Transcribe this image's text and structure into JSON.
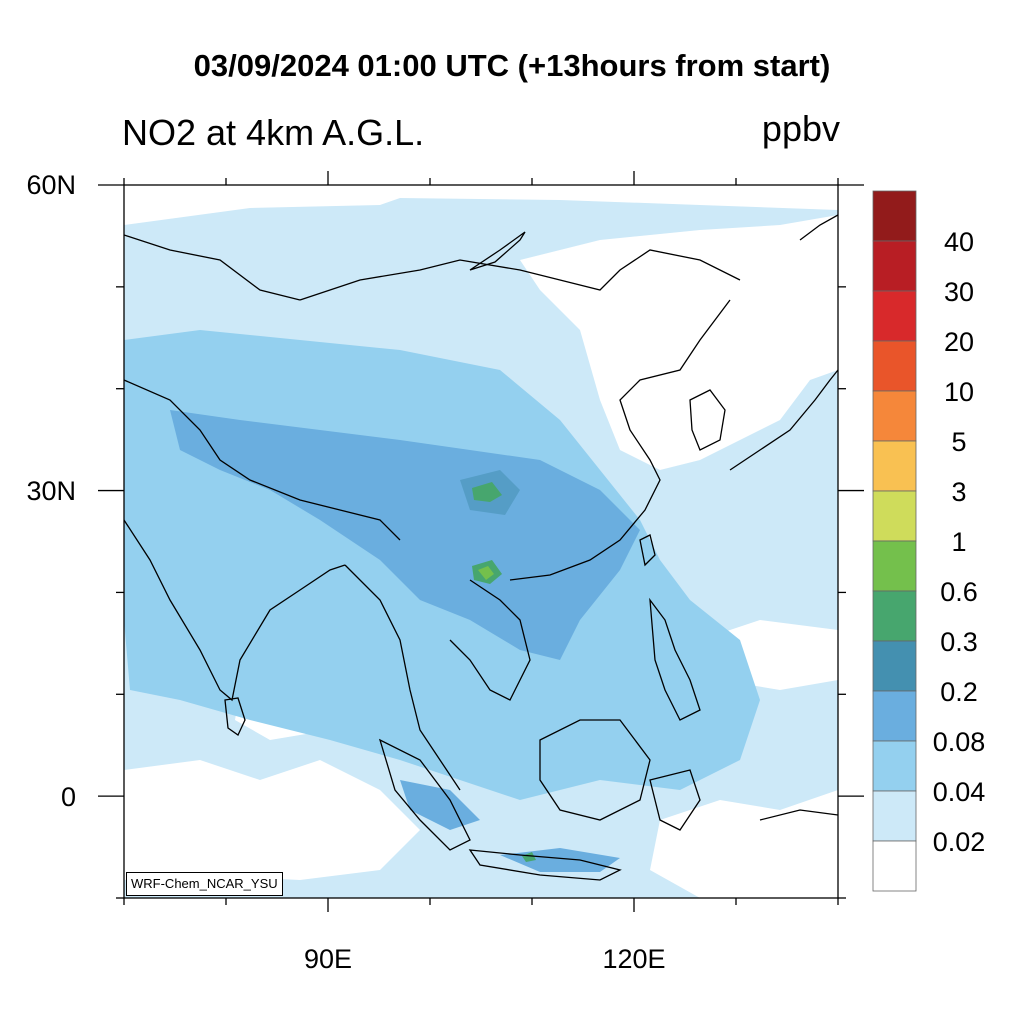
{
  "header": {
    "title": "03/09/2024 01:00 UTC (+13hours from start)",
    "subtitle": "NO2 at 4km A.G.L.",
    "units": "ppbv"
  },
  "axes": {
    "lat_labels": [
      "60N",
      "30N",
      "0"
    ],
    "lon_labels": [
      "90E",
      "120E"
    ],
    "lat_range": [
      -10,
      60
    ],
    "lon_range": [
      70,
      140
    ]
  },
  "colorbar": {
    "labels": [
      "40",
      "30",
      "20",
      "10",
      "5",
      "3",
      "1",
      "0.6",
      "0.3",
      "0.2",
      "0.08",
      "0.04",
      "0.02"
    ],
    "colors": [
      "#921b1b",
      "#b81e24",
      "#d8292b",
      "#e9552a",
      "#f5873a",
      "#f9c152",
      "#cfdc5b",
      "#74c04c",
      "#47a66e",
      "#4490b0",
      "#6aaedf",
      "#94d0ef",
      "#cde9f8",
      "#ffffff"
    ]
  },
  "credit": "WRF-Chem_NCAR_YSU"
}
